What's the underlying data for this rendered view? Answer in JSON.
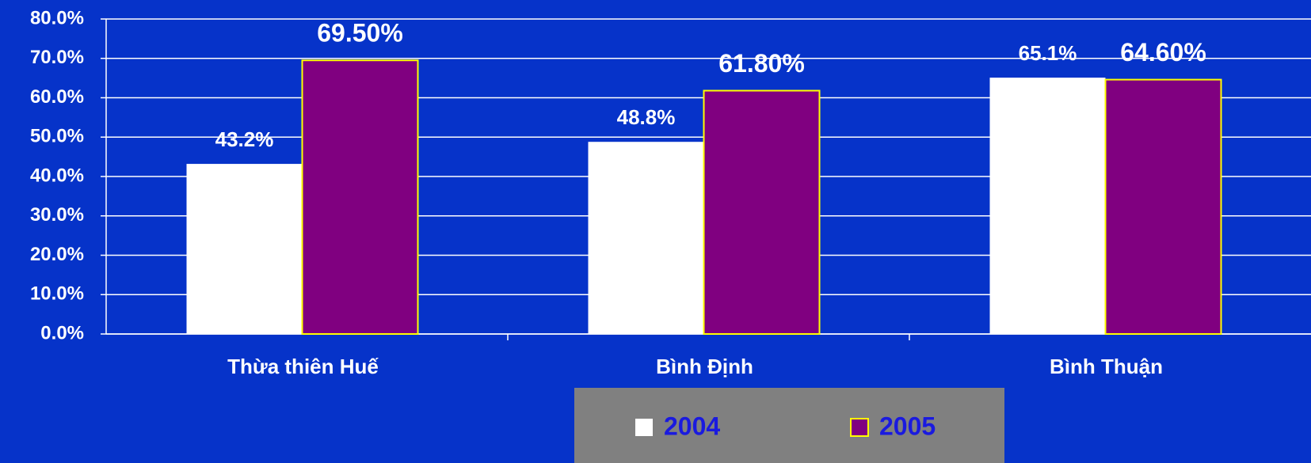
{
  "chart_data": {
    "type": "bar",
    "categories": [
      "Thừa thiên Huế",
      "Bình Định",
      "Bình Thuận"
    ],
    "series": [
      {
        "name": "2004",
        "color": "#ffffff",
        "values": [
          43.2,
          48.8,
          65.1
        ],
        "value_labels": [
          "43.2%",
          "48.8%",
          "65.1%"
        ]
      },
      {
        "name": "2005",
        "color": "#800080",
        "values": [
          69.5,
          61.8,
          64.6
        ],
        "value_labels": [
          "69.50%",
          "61.80%",
          "64.60%"
        ]
      }
    ],
    "ylim": [
      0,
      80
    ],
    "yticks": [
      {
        "value": 0,
        "label": "0.0%"
      },
      {
        "value": 10,
        "label": "10.0%"
      },
      {
        "value": 20,
        "label": "20.0%"
      },
      {
        "value": 30,
        "label": "30.0%"
      },
      {
        "value": 40,
        "label": "40.0%"
      },
      {
        "value": 50,
        "label": "50.0%"
      },
      {
        "value": 60,
        "label": "60.0%"
      },
      {
        "value": 70,
        "label": "70.0%"
      },
      {
        "value": 80,
        "label": "80.0%"
      }
    ],
    "grid": true,
    "legend": "bottom"
  }
}
